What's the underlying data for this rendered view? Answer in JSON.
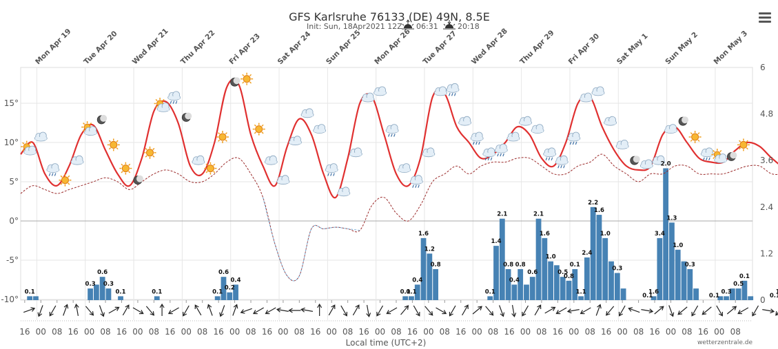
{
  "header": {
    "title": "GFS Karlsruhe 76133 (DE) 49N, 8.5E",
    "init": "Init: Sun, 18Apr2021 12Z",
    "sunrise": "06:31",
    "sunset": "20:18"
  },
  "credit": "wetterzentrale.de",
  "menu_icon": "hamburger-menu-icon",
  "colors": {
    "temp": "#e03030",
    "dewpoint": "#9b2a2a",
    "dewpoint_low": "#7ab0d8",
    "precip": "#4682b4",
    "grid": "#e6e6e6",
    "zero_line": "#aaaaaa"
  },
  "chart_data": {
    "type": "line+bar",
    "title": "GFS Karlsruhe 76133 (DE) 49N, 8.5E",
    "xlabel": "Local time (UTC+2)",
    "y_left": {
      "label": "Temperature (°C)",
      "ticks": [
        "15°",
        "10°",
        "5°",
        "0°",
        "-5°",
        "-10°"
      ],
      "range": [
        -10,
        20
      ]
    },
    "y_right": {
      "label": "Precipitation (mm)",
      "ticks": [
        "6",
        "4.8",
        "3.6",
        "2.4",
        "1.2",
        "0"
      ],
      "range": [
        0,
        6
      ]
    },
    "days": [
      {
        "weekday": "Mon",
        "date": "Apr 19"
      },
      {
        "weekday": "Tue",
        "date": "Apr 20"
      },
      {
        "weekday": "Wed",
        "date": "Apr 21"
      },
      {
        "weekday": "Thu",
        "date": "Apr 22"
      },
      {
        "weekday": "Fri",
        "date": "Apr 23"
      },
      {
        "weekday": "Sat",
        "date": "Apr 24"
      },
      {
        "weekday": "Sun",
        "date": "Apr 25"
      },
      {
        "weekday": "Mon",
        "date": "Apr 26"
      },
      {
        "weekday": "Tue",
        "date": "Apr 27"
      },
      {
        "weekday": "Wed",
        "date": "Apr 28"
      },
      {
        "weekday": "Thu",
        "date": "Apr 29"
      },
      {
        "weekday": "Fri",
        "date": "Apr 30"
      },
      {
        "weekday": "Sat",
        "date": "May 1"
      },
      {
        "weekday": "Sun",
        "date": "May 2"
      },
      {
        "weekday": "Mon",
        "date": "May 3"
      }
    ],
    "x_tick_labels": [
      "16",
      "00",
      "08",
      "16",
      "00",
      "08",
      "16",
      "00",
      "08",
      "16",
      "00",
      "08",
      "16",
      "00",
      "08",
      "16",
      "00",
      "08",
      "16",
      "00",
      "08",
      "16",
      "00",
      "08",
      "16",
      "00",
      "08",
      "16",
      "00",
      "08",
      "16",
      "00",
      "08",
      "16",
      "00",
      "08",
      "16",
      "00",
      "08",
      "16",
      "00",
      "08",
      "16",
      "00",
      "08"
    ],
    "series": [
      {
        "name": "Temperature",
        "unit": "°C",
        "start_hour": 14,
        "step_hours": 6,
        "values": [
          8.5,
          10,
          6,
          4.5,
          7,
          11,
          12.2,
          9,
          6,
          4.5,
          8,
          14,
          15.2,
          12.5,
          7,
          6,
          10,
          17,
          17.4,
          11,
          7,
          4.5,
          9.5,
          13,
          11,
          6,
          3,
          8,
          15,
          15.8,
          11,
          6,
          4.5,
          8,
          15.8,
          16.2,
          12,
          10,
          8,
          8.5,
          10,
          12,
          11,
          8,
          7,
          10,
          15,
          15.8,
          12,
          9,
          7,
          6.5,
          7,
          11,
          12,
          10,
          8,
          7.5,
          7.5,
          9,
          10,
          9.5,
          8,
          7,
          8,
          10,
          15.8,
          12,
          10,
          11,
          11,
          10,
          9,
          11,
          9,
          6,
          3.5,
          7,
          9,
          8,
          4,
          3,
          7,
          12,
          13,
          11,
          6,
          4,
          9,
          14.2
        ]
      },
      {
        "name": "Dewpoint",
        "unit": "°C",
        "start_hour": 14,
        "step_hours": 6,
        "values": [
          3.5,
          4.5,
          4,
          3.5,
          4,
          4.5,
          5,
          5.5,
          5,
          4,
          5,
          6,
          6.5,
          6,
          5,
          5,
          6,
          7.5,
          8,
          6,
          3,
          -3,
          -7,
          -7,
          -1,
          -1,
          -0.8,
          -1,
          -1.2,
          2,
          3,
          1,
          0,
          2,
          5,
          6,
          7,
          6,
          7,
          7.5,
          7.5,
          8,
          8,
          7,
          6,
          6,
          7,
          7.5,
          8.5,
          7,
          6,
          5,
          6,
          6,
          7,
          7,
          6,
          6,
          6,
          6.5,
          7,
          7,
          6,
          6,
          6,
          7,
          9,
          8,
          7,
          9.2,
          9,
          8,
          7,
          7.5,
          8,
          6,
          4.5,
          4,
          6,
          6,
          4,
          3.2,
          4,
          4.5,
          5,
          4.5,
          4,
          3,
          4,
          3.5
        ]
      },
      {
        "name": "Precipitation",
        "unit": "mm",
        "start_hour": 14,
        "step_hours": 3,
        "values": [
          0,
          0.1,
          0.1,
          0,
          0,
          0,
          0,
          0,
          0,
          0,
          0,
          0.3,
          0.4,
          0.6,
          0.3,
          0,
          0.1,
          0,
          0,
          0,
          0,
          0,
          0.1,
          0,
          0,
          0,
          0,
          0,
          0,
          0,
          0,
          0,
          0.1,
          0.6,
          0.2,
          0.4,
          0,
          0,
          0,
          0,
          0,
          0,
          0,
          0,
          0,
          0,
          0,
          0,
          0,
          0,
          0,
          0,
          0,
          0,
          0,
          0,
          0,
          0,
          0,
          0,
          0,
          0,
          0,
          0.1,
          0.1,
          0.4,
          1.6,
          1.2,
          0.8,
          0,
          0,
          0,
          0,
          0,
          0,
          0,
          0,
          0.1,
          1.4,
          2.1,
          0.8,
          0.4,
          0.8,
          0.4,
          0.6,
          2.1,
          1.6,
          1.0,
          0.9,
          0.6,
          0.5,
          0.8,
          0.1,
          1.1,
          2.4,
          2.2,
          1.6,
          1.0,
          0.7,
          0.3,
          0,
          0,
          0,
          0,
          0.1,
          1.6,
          3.4,
          2.0,
          1.3,
          1.0,
          0.8,
          0.3,
          0,
          0,
          0,
          0.1,
          0.1,
          0.3,
          0.3,
          0.5,
          0.1,
          0,
          0,
          0,
          0,
          0.1,
          1.1,
          0.3,
          0.1,
          0,
          0,
          0,
          0
        ]
      },
      {
        "name": "Wind direction",
        "unit": "deg",
        "values": [
          250,
          20,
          30,
          200,
          170,
          320,
          340,
          240,
          210,
          300,
          320,
          180,
          60,
          30,
          150,
          160,
          20,
          200,
          70,
          60,
          60,
          100,
          90,
          100,
          180,
          210,
          330,
          210,
          350,
          30,
          60,
          220,
          330,
          320,
          300,
          30,
          210,
          230,
          320,
          340,
          350,
          30,
          210,
          240,
          60,
          80,
          60,
          200,
          40,
          30,
          110,
          280,
          230,
          340,
          50,
          30,
          50,
          330,
          230,
          60,
          30,
          280,
          40,
          200
        ]
      }
    ],
    "weather_icons": [
      "sun-cloud",
      "cloud",
      "cloud-rain",
      "sun",
      "cloud",
      "sun-cloud",
      "moon",
      "sun",
      "sun",
      "moon",
      "sun",
      "sun-cloud",
      "cloud-rain",
      "moon",
      "cloud",
      "sun",
      "sun",
      "moon",
      "sun",
      "sun",
      "cloud",
      "cloud",
      "cloud",
      "cloud",
      "cloud",
      "cloud-rain",
      "cloud",
      "cloud",
      "cloud",
      "cloud",
      "cloud-rain",
      "cloud",
      "cloud-rain",
      "cloud",
      "cloud",
      "cloud-rain",
      "cloud",
      "cloud-rain",
      "cloud-rain",
      "cloud-rain",
      "cloud",
      "cloud",
      "cloud",
      "cloud-rain",
      "cloud-rain",
      "cloud-rain",
      "cloud",
      "cloud",
      "cloud",
      "cloud",
      "moon",
      "cloud",
      "cloud",
      "cloud",
      "moon",
      "sun",
      "cloud-rain",
      "sun-cloud",
      "moon",
      "sun"
    ],
    "bar_labels": [
      {
        "i": 1,
        "text": "0.1"
      },
      {
        "i": 11,
        "text": "0.3"
      },
      {
        "i": 13,
        "text": "0.6"
      },
      {
        "i": 14,
        "text": "0.3"
      },
      {
        "i": 16,
        "text": "0.1"
      },
      {
        "i": 22,
        "text": "0.1"
      },
      {
        "i": 32,
        "text": "0.1"
      },
      {
        "i": 33,
        "text": "0.6"
      },
      {
        "i": 34,
        "text": "0.2"
      },
      {
        "i": 35,
        "text": "0.4"
      },
      {
        "i": 63,
        "text": "0.1"
      },
      {
        "i": 64,
        "text": "0.1"
      },
      {
        "i": 65,
        "text": "0.4"
      },
      {
        "i": 66,
        "text": "1.6"
      },
      {
        "i": 67,
        "text": "1.2"
      },
      {
        "i": 68,
        "text": "0.8"
      },
      {
        "i": 77,
        "text": "0.1"
      },
      {
        "i": 78,
        "text": "1.4"
      },
      {
        "i": 79,
        "text": "2.1"
      },
      {
        "i": 80,
        "text": "0.8"
      },
      {
        "i": 81,
        "text": "0.4"
      },
      {
        "i": 82,
        "text": "0.8"
      },
      {
        "i": 84,
        "text": "0.6"
      },
      {
        "i": 85,
        "text": "2.1"
      },
      {
        "i": 86,
        "text": "1.6"
      },
      {
        "i": 87,
        "text": "1.0"
      },
      {
        "i": 89,
        "text": "0.5"
      },
      {
        "i": 90,
        "text": "0.8"
      },
      {
        "i": 91,
        "text": "0.1"
      },
      {
        "i": 92,
        "text": "1.1"
      },
      {
        "i": 93,
        "text": "2.4"
      },
      {
        "i": 94,
        "text": "2.2"
      },
      {
        "i": 95,
        "text": "1.6"
      },
      {
        "i": 96,
        "text": "1.0"
      },
      {
        "i": 98,
        "text": "0.3"
      },
      {
        "i": 103,
        "text": "0.1"
      },
      {
        "i": 104,
        "text": "1.6"
      },
      {
        "i": 105,
        "text": "3.4"
      },
      {
        "i": 106,
        "text": "2.0"
      },
      {
        "i": 107,
        "text": "1.3"
      },
      {
        "i": 108,
        "text": "1.0"
      },
      {
        "i": 110,
        "text": "0.3"
      },
      {
        "i": 114,
        "text": "0.1"
      },
      {
        "i": 116,
        "text": "0.3"
      },
      {
        "i": 118,
        "text": "0.5"
      },
      {
        "i": 119,
        "text": "0.1"
      },
      {
        "i": 124,
        "text": "0.1"
      },
      {
        "i": 125,
        "text": "1.1"
      },
      {
        "i": 126,
        "text": "0.3"
      }
    ]
  }
}
